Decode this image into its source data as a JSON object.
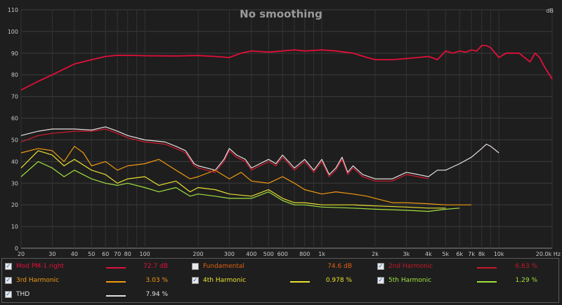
{
  "chart_data": {
    "type": "line",
    "title": "No smoothing",
    "xscale": "log",
    "xlim": [
      20,
      20000
    ],
    "ylim": [
      0,
      110
    ],
    "ylabel": "dB",
    "xunit": "Hz",
    "grid": true,
    "y_ticks": [
      "0",
      "10",
      "20",
      "30",
      "40",
      "50",
      "60",
      "70",
      "80",
      "90",
      "100",
      "110"
    ],
    "x_ticks": [
      {
        "f": 20,
        "label": "20"
      },
      {
        "f": 30,
        "label": "30"
      },
      {
        "f": 40,
        "label": "40"
      },
      {
        "f": 50,
        "label": "50"
      },
      {
        "f": 60,
        "label": "60"
      },
      {
        "f": 70,
        "label": "70"
      },
      {
        "f": 80,
        "label": "80"
      },
      {
        "f": 100,
        "label": "100"
      },
      {
        "f": 200,
        "label": "200"
      },
      {
        "f": 300,
        "label": "300"
      },
      {
        "f": 400,
        "label": "400"
      },
      {
        "f": 500,
        "label": "500"
      },
      {
        "f": 600,
        "label": "600"
      },
      {
        "f": 800,
        "label": "800"
      },
      {
        "f": 1000,
        "label": "1k"
      },
      {
        "f": 2000,
        "label": "2k"
      },
      {
        "f": 3000,
        "label": "3k"
      },
      {
        "f": 4000,
        "label": "4k"
      },
      {
        "f": 5000,
        "label": "5k"
      },
      {
        "f": 6000,
        "label": "6k"
      },
      {
        "f": 7000,
        "label": "7k"
      },
      {
        "f": 8000,
        "label": "8k"
      },
      {
        "f": 10000,
        "label": "10k"
      },
      {
        "f": 20000,
        "label": "20.0k Hz"
      }
    ],
    "series": [
      {
        "name": "Mod PM-1 right",
        "color": "#e0103a",
        "visible": true,
        "points": [
          [
            20,
            73
          ],
          [
            25,
            77
          ],
          [
            30,
            80
          ],
          [
            40,
            85
          ],
          [
            50,
            87
          ],
          [
            60,
            88.5
          ],
          [
            70,
            89
          ],
          [
            80,
            89
          ],
          [
            100,
            88.8
          ],
          [
            150,
            88.7
          ],
          [
            200,
            88.9
          ],
          [
            250,
            88.5
          ],
          [
            300,
            88
          ],
          [
            350,
            90
          ],
          [
            400,
            91
          ],
          [
            500,
            90.5
          ],
          [
            600,
            91
          ],
          [
            700,
            91.5
          ],
          [
            800,
            91
          ],
          [
            1000,
            91.5
          ],
          [
            1200,
            91
          ],
          [
            1500,
            90
          ],
          [
            1800,
            88
          ],
          [
            2000,
            87
          ],
          [
            2500,
            87
          ],
          [
            3000,
            87.5
          ],
          [
            3500,
            88
          ],
          [
            4000,
            88.5
          ],
          [
            4500,
            87
          ],
          [
            5000,
            91
          ],
          [
            5500,
            90
          ],
          [
            6000,
            91
          ],
          [
            6500,
            90.5
          ],
          [
            7000,
            91.5
          ],
          [
            7500,
            91
          ],
          [
            8000,
            93.5
          ],
          [
            8500,
            93.5
          ],
          [
            9000,
            92.5
          ],
          [
            10000,
            88
          ],
          [
            11000,
            90
          ],
          [
            13000,
            90
          ],
          [
            15000,
            86
          ],
          [
            16000,
            90
          ],
          [
            17000,
            88
          ],
          [
            18000,
            84
          ],
          [
            20000,
            78
          ]
        ]
      },
      {
        "name": "Fundamental",
        "color": "#ff6a00",
        "visible": false,
        "points": []
      },
      {
        "name": "2nd Harmonic",
        "color": "#d41a30",
        "points": [
          [
            20,
            49
          ],
          [
            25,
            52
          ],
          [
            30,
            53
          ],
          [
            40,
            54
          ],
          [
            50,
            54
          ],
          [
            60,
            55
          ],
          [
            70,
            53
          ],
          [
            80,
            51
          ],
          [
            100,
            49
          ],
          [
            130,
            48
          ],
          [
            150,
            46
          ],
          [
            170,
            44
          ],
          [
            190,
            38
          ],
          [
            200,
            37
          ],
          [
            250,
            35
          ],
          [
            280,
            40
          ],
          [
            300,
            45
          ],
          [
            330,
            42
          ],
          [
            370,
            40
          ],
          [
            400,
            36
          ],
          [
            500,
            40
          ],
          [
            550,
            38
          ],
          [
            600,
            42
          ],
          [
            700,
            36
          ],
          [
            800,
            40
          ],
          [
            900,
            35
          ],
          [
            1000,
            40
          ],
          [
            1100,
            33
          ],
          [
            1200,
            36
          ],
          [
            1300,
            41
          ],
          [
            1400,
            34
          ],
          [
            1500,
            37
          ],
          [
            1700,
            33
          ],
          [
            2000,
            31
          ],
          [
            2500,
            31
          ],
          [
            3000,
            34
          ],
          [
            3500,
            33
          ],
          [
            4000,
            32
          ]
        ]
      },
      {
        "name": "3rd Harmonic",
        "color": "#f09a10",
        "points": [
          [
            20,
            44
          ],
          [
            25,
            46
          ],
          [
            30,
            45
          ],
          [
            35,
            40
          ],
          [
            40,
            47
          ],
          [
            45,
            44
          ],
          [
            50,
            38
          ],
          [
            60,
            40
          ],
          [
            70,
            36
          ],
          [
            80,
            38
          ],
          [
            100,
            39
          ],
          [
            120,
            41
          ],
          [
            150,
            36
          ],
          [
            180,
            32
          ],
          [
            200,
            33
          ],
          [
            250,
            36
          ],
          [
            300,
            32
          ],
          [
            350,
            35
          ],
          [
            400,
            31
          ],
          [
            500,
            30
          ],
          [
            600,
            33
          ],
          [
            700,
            30
          ],
          [
            800,
            27
          ],
          [
            1000,
            25
          ],
          [
            1200,
            26
          ],
          [
            1500,
            25
          ],
          [
            1800,
            24
          ],
          [
            2000,
            23
          ],
          [
            2500,
            21
          ],
          [
            3000,
            21
          ],
          [
            4000,
            20.5
          ],
          [
            5000,
            20
          ],
          [
            6000,
            20
          ],
          [
            7000,
            20
          ]
        ]
      },
      {
        "name": "4th Harmonic",
        "color": "#e8e030",
        "points": [
          [
            20,
            37
          ],
          [
            25,
            45
          ],
          [
            30,
            43
          ],
          [
            35,
            38
          ],
          [
            40,
            41
          ],
          [
            50,
            36
          ],
          [
            60,
            34
          ],
          [
            70,
            30
          ],
          [
            80,
            32
          ],
          [
            100,
            33
          ],
          [
            120,
            29
          ],
          [
            150,
            31
          ],
          [
            180,
            26
          ],
          [
            200,
            28
          ],
          [
            250,
            27
          ],
          [
            300,
            25
          ],
          [
            400,
            24
          ],
          [
            500,
            27
          ],
          [
            600,
            23
          ],
          [
            700,
            21
          ],
          [
            800,
            21
          ],
          [
            1000,
            20
          ],
          [
            1500,
            20
          ],
          [
            2000,
            19.5
          ],
          [
            3000,
            19
          ],
          [
            4000,
            18.5
          ],
          [
            5000,
            18.5
          ]
        ]
      },
      {
        "name": "5th Harmonic",
        "color": "#a0e040",
        "points": [
          [
            20,
            33
          ],
          [
            25,
            40
          ],
          [
            30,
            37
          ],
          [
            35,
            33
          ],
          [
            40,
            36
          ],
          [
            50,
            32
          ],
          [
            60,
            30
          ],
          [
            70,
            29
          ],
          [
            80,
            30
          ],
          [
            100,
            28
          ],
          [
            120,
            26
          ],
          [
            150,
            28
          ],
          [
            180,
            24
          ],
          [
            200,
            25
          ],
          [
            250,
            24
          ],
          [
            300,
            23
          ],
          [
            400,
            23
          ],
          [
            500,
            26
          ],
          [
            600,
            22
          ],
          [
            700,
            20
          ],
          [
            800,
            20
          ],
          [
            1000,
            19
          ],
          [
            1500,
            18.5
          ],
          [
            2000,
            18
          ],
          [
            3000,
            17.5
          ],
          [
            4000,
            17
          ],
          [
            5000,
            18
          ],
          [
            6000,
            18.5
          ]
        ]
      },
      {
        "name": "THD",
        "color": "#e8e0e0",
        "points": [
          [
            20,
            52
          ],
          [
            25,
            54
          ],
          [
            30,
            55
          ],
          [
            40,
            55
          ],
          [
            50,
            54.5
          ],
          [
            60,
            56
          ],
          [
            70,
            54
          ],
          [
            80,
            52
          ],
          [
            100,
            50
          ],
          [
            130,
            49
          ],
          [
            150,
            47
          ],
          [
            170,
            45
          ],
          [
            190,
            39
          ],
          [
            200,
            38
          ],
          [
            250,
            36
          ],
          [
            280,
            41
          ],
          [
            300,
            46
          ],
          [
            330,
            43
          ],
          [
            370,
            41
          ],
          [
            400,
            37
          ],
          [
            500,
            41
          ],
          [
            550,
            39
          ],
          [
            600,
            43
          ],
          [
            700,
            37
          ],
          [
            800,
            41
          ],
          [
            900,
            36
          ],
          [
            1000,
            41
          ],
          [
            1100,
            34
          ],
          [
            1200,
            37
          ],
          [
            1300,
            42
          ],
          [
            1400,
            35
          ],
          [
            1500,
            38
          ],
          [
            1700,
            34
          ],
          [
            2000,
            32
          ],
          [
            2500,
            32
          ],
          [
            3000,
            35
          ],
          [
            3500,
            34
          ],
          [
            4000,
            33
          ],
          [
            4500,
            36
          ],
          [
            5000,
            36
          ],
          [
            6000,
            39
          ],
          [
            7000,
            42
          ],
          [
            8000,
            46
          ],
          [
            8500,
            48
          ],
          [
            9000,
            47
          ],
          [
            10000,
            44
          ]
        ]
      }
    ]
  },
  "legend": [
    {
      "name": "Mod PM-1 right",
      "value": "72.7 dB",
      "color": "#e0103a",
      "checked": true
    },
    {
      "name": "Fundamental",
      "value": "74.6 dB",
      "color": "#e06010",
      "checked": false
    },
    {
      "name": "2nd Harmonic",
      "value": "6.63 %",
      "color": "#c81828",
      "checked": true
    },
    {
      "name": "3rd Harmonic",
      "value": "3.03 %",
      "color": "#f09a10",
      "checked": true
    },
    {
      "name": "4th Harmonic",
      "value": "0.978 %",
      "color": "#e8e030",
      "checked": true
    },
    {
      "name": "5th Harmonic",
      "value": "1.29 %",
      "color": "#a0e040",
      "checked": true
    },
    {
      "name": "THD",
      "value": "7.94 %",
      "color": "#e0e0e0",
      "checked": true
    }
  ]
}
